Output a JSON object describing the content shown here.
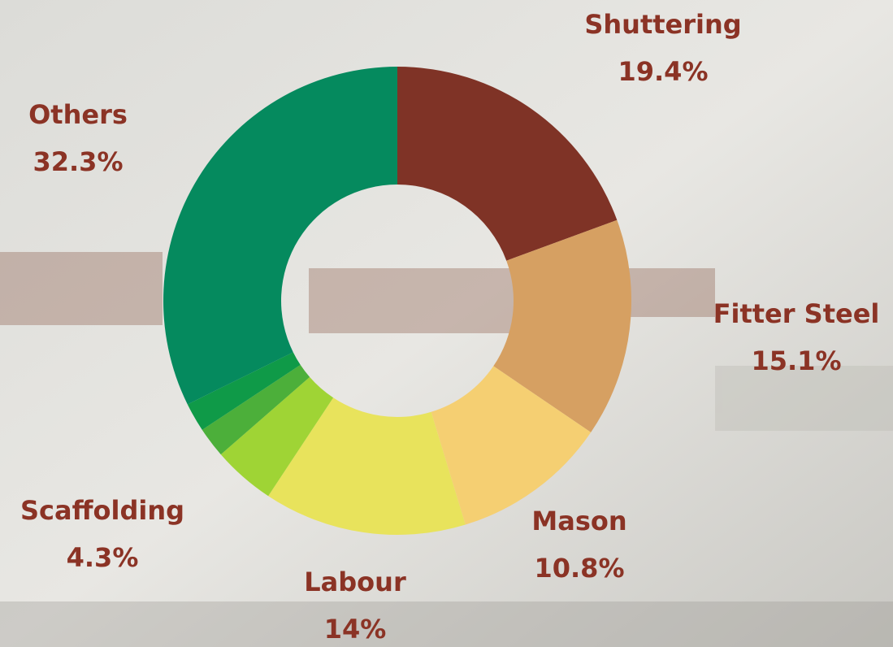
{
  "chart_data": {
    "type": "donut",
    "categories": [
      "Shuttering",
      "Fitter Steel",
      "Mason",
      "Labour",
      "Scaffolding",
      null,
      null,
      "Others"
    ],
    "values": [
      19.4,
      15.1,
      10.8,
      14,
      4.3,
      2.1,
      2.0,
      32.3
    ],
    "value_labels": [
      "19.4%",
      "15.1%",
      "10.8%",
      "14%",
      "4.3%",
      null,
      null,
      "32.3%"
    ],
    "colors": [
      "#7f3326",
      "#d6a062",
      "#f5cf72",
      "#e8e35c",
      "#9fd435",
      "#4caf3a",
      "#0f9a48",
      "#058a5e"
    ]
  }
}
